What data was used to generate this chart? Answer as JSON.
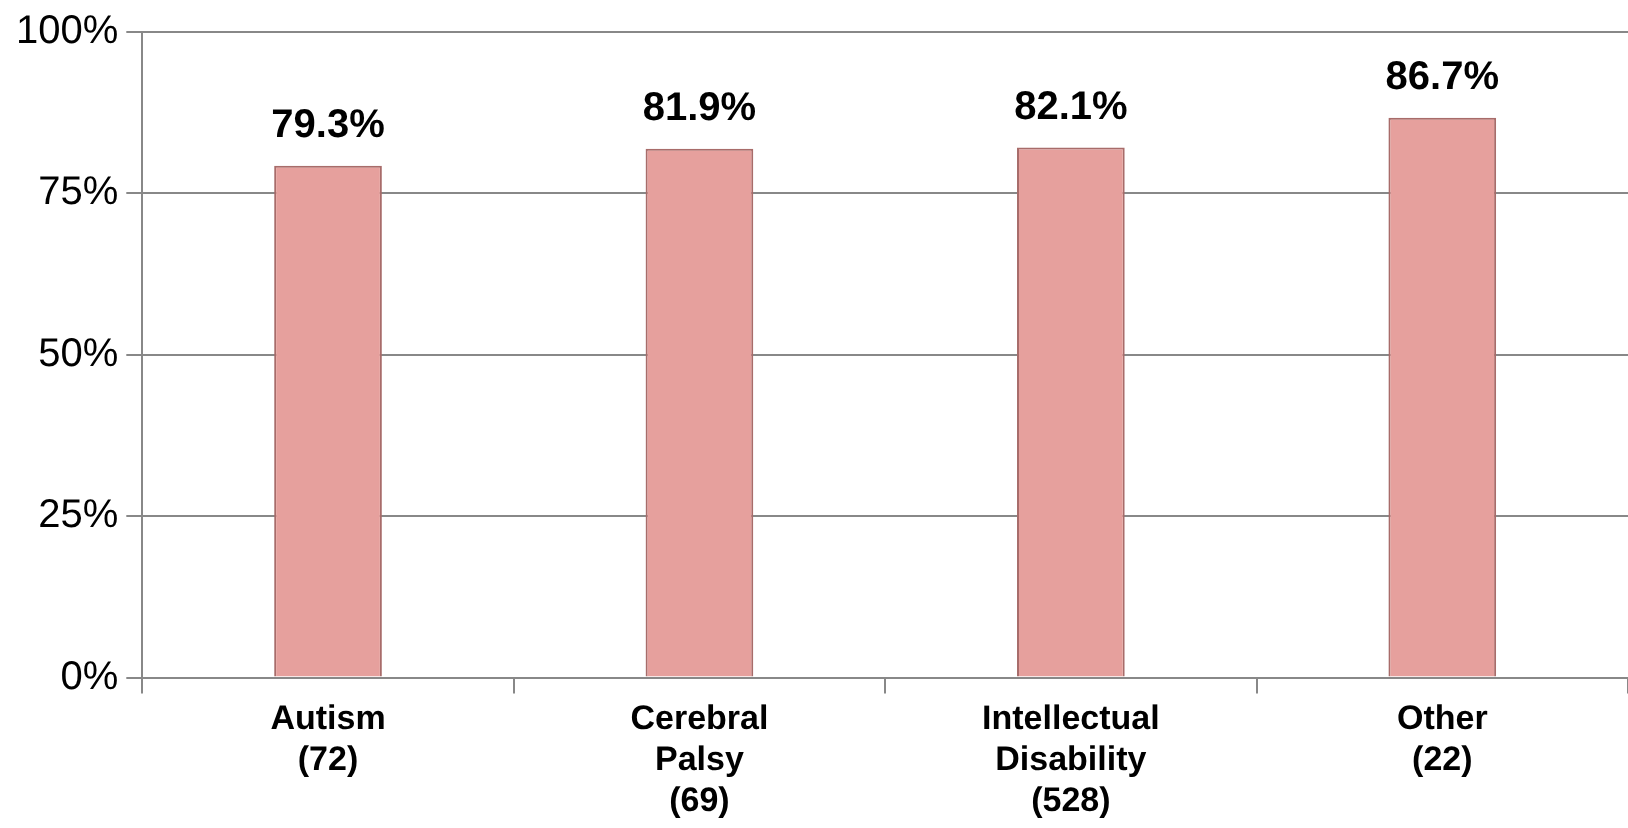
{
  "chart_data": {
    "type": "bar",
    "categories": [
      "Autism\n(72)",
      "Cerebral\nPalsy\n(69)",
      "Intellectual\nDisability\n(528)",
      "Other\n(22)"
    ],
    "values": [
      79.3,
      81.9,
      82.1,
      86.7
    ],
    "color": "#e6a09d",
    "value_labels": [
      "79.3%",
      "81.9%",
      "82.1%",
      "86.7%"
    ],
    "ylim": [
      0,
      100
    ],
    "yticks": [
      {
        "value": 0,
        "label": "0%"
      },
      {
        "value": 25,
        "label": "25%"
      },
      {
        "value": 50,
        "label": "50%"
      },
      {
        "value": 75,
        "label": "75%"
      },
      {
        "value": 100,
        "label": "100%"
      }
    ],
    "grid": "y"
  }
}
